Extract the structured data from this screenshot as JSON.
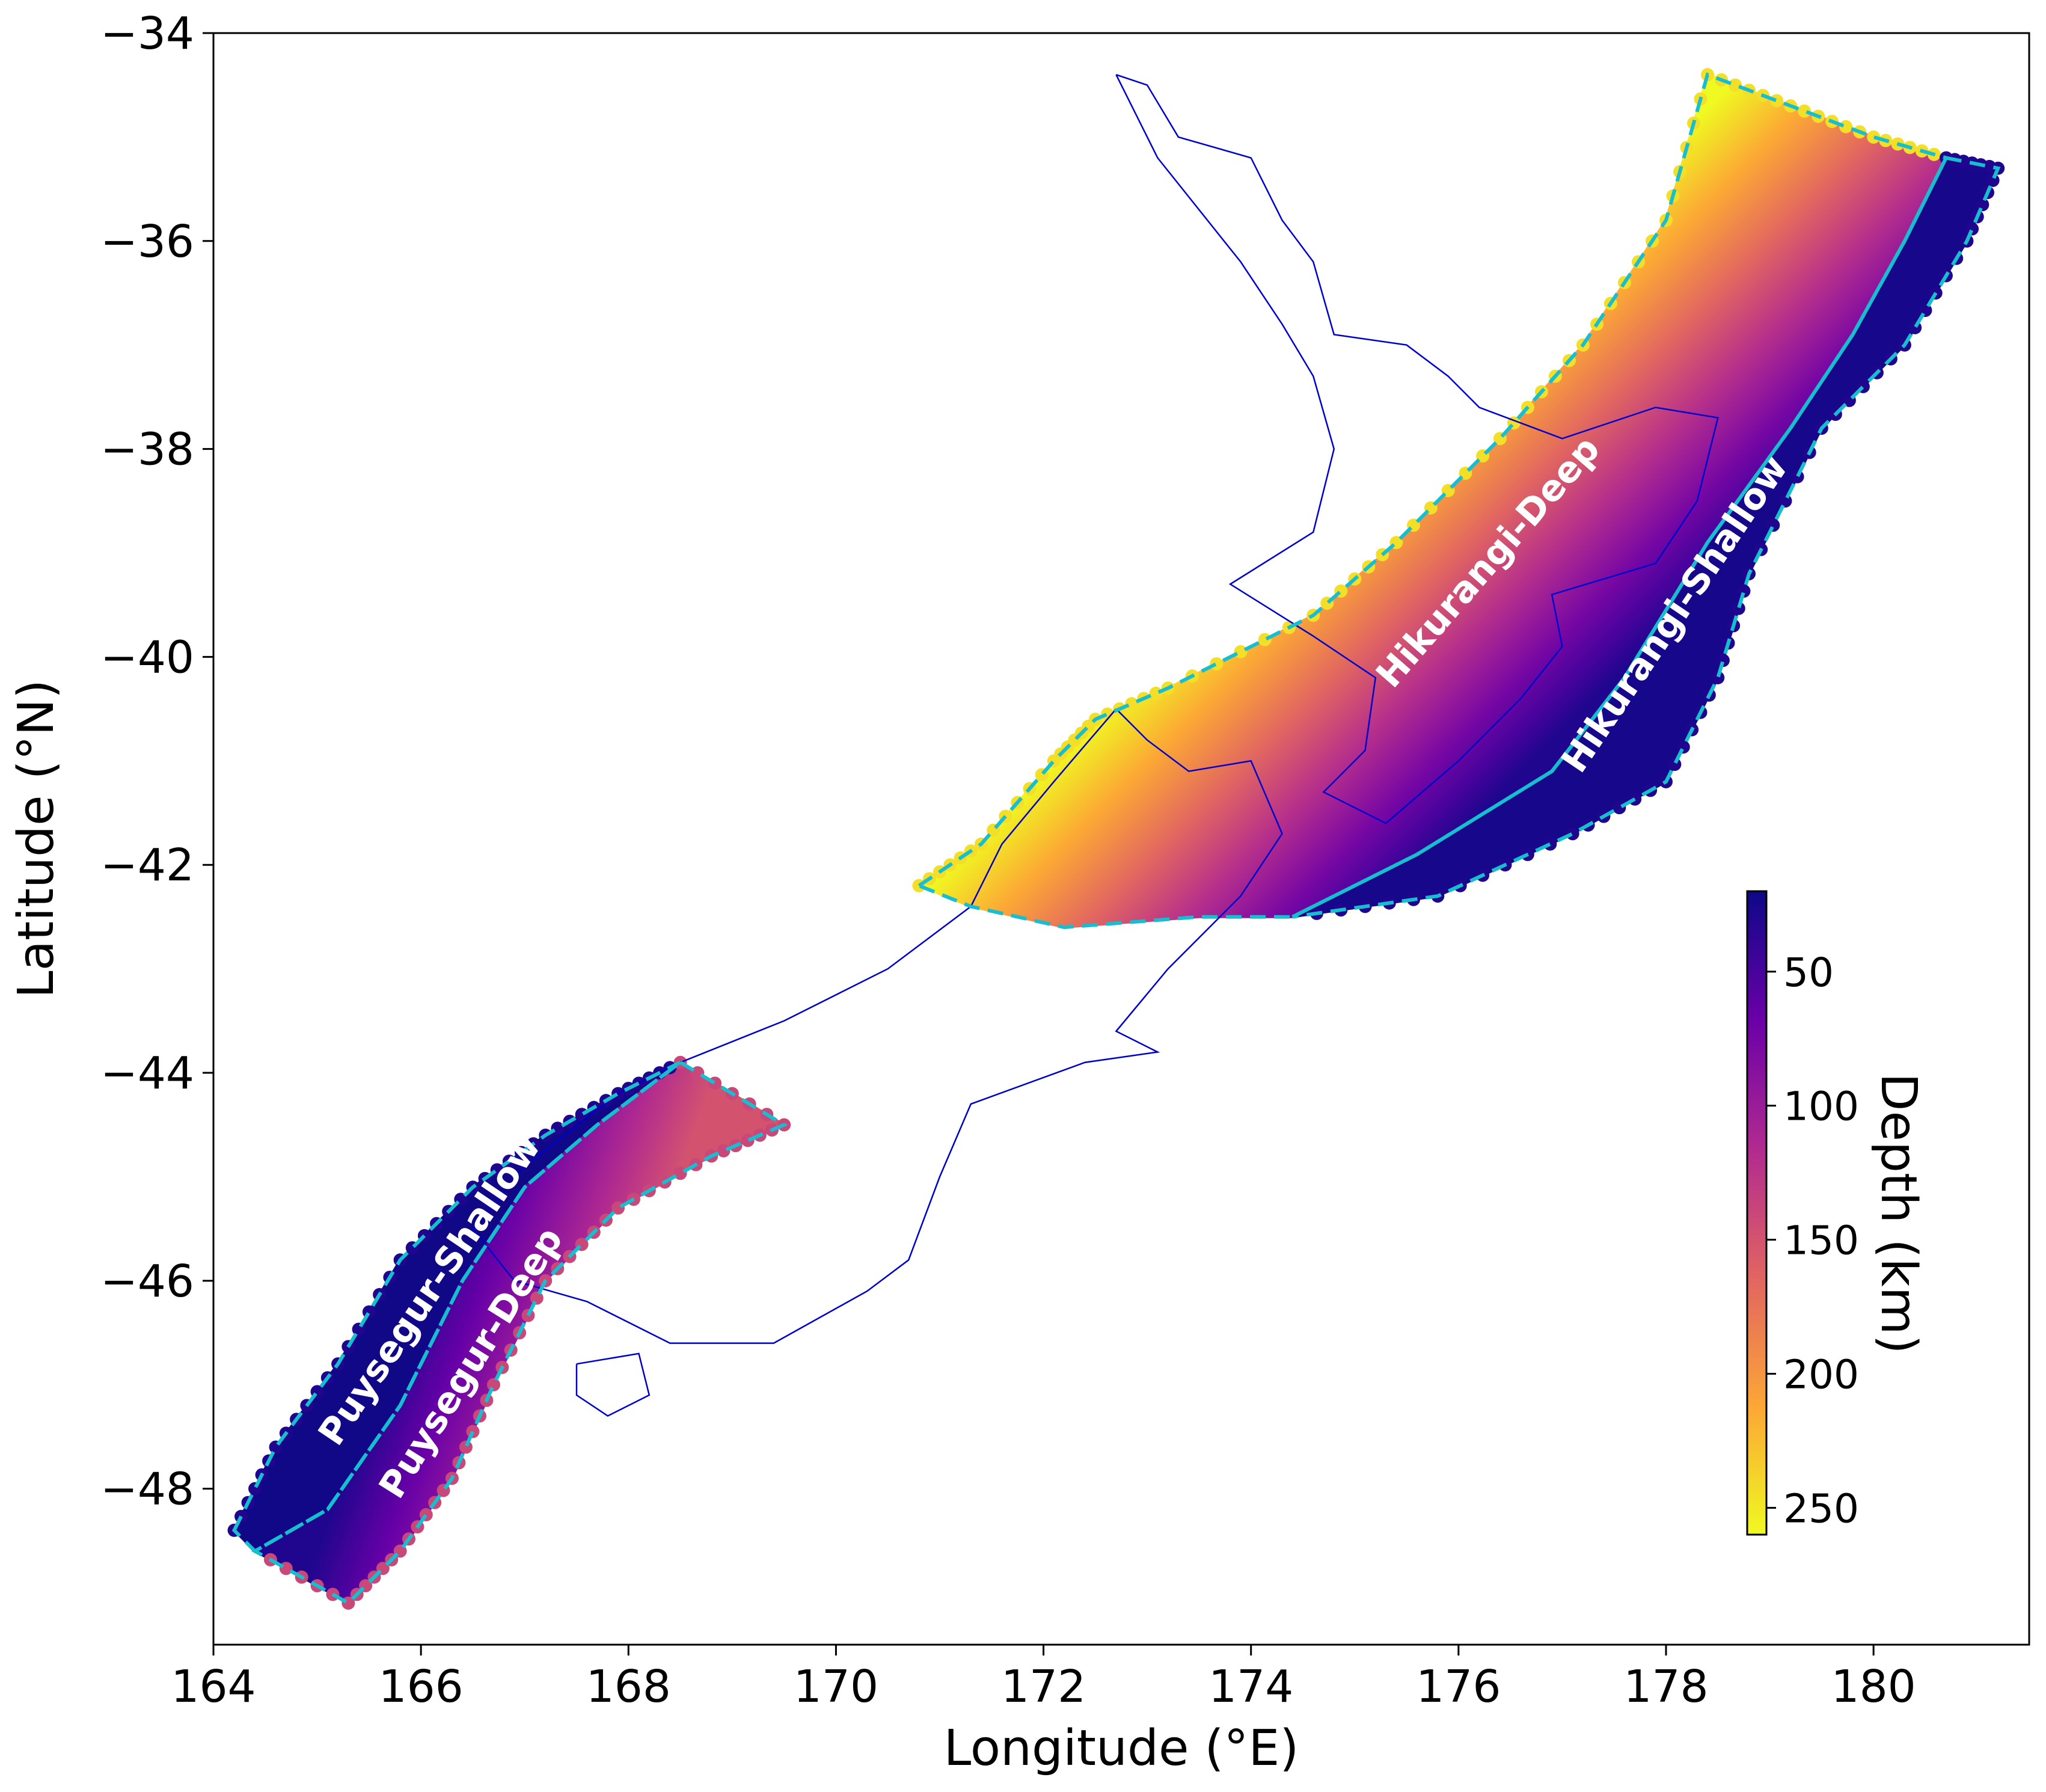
{
  "chart_data": {
    "type": "scatter",
    "title": "",
    "xlabel": "Longitude (°E)",
    "ylabel": "Latitude (°N)",
    "xlim": [
      164,
      181.5
    ],
    "ylim": [
      -49.5,
      -34
    ],
    "xticks": [
      164,
      166,
      168,
      170,
      172,
      174,
      176,
      178,
      180
    ],
    "yticks": [
      -34,
      -36,
      -38,
      -40,
      -42,
      -44,
      -46,
      -48
    ],
    "xtick_labels": [
      "164",
      "166",
      "168",
      "170",
      "172",
      "174",
      "176",
      "178",
      "180"
    ],
    "ytick_labels": [
      "−34",
      "−36",
      "−38",
      "−40",
      "−42",
      "−44",
      "−46",
      "−48"
    ],
    "grid": false,
    "colormap": "plasma_r",
    "colorbar": {
      "label": "Depth (km)",
      "range": [
        20,
        260
      ],
      "ticks": [
        50,
        100,
        150,
        200,
        250
      ],
      "tick_labels": [
        "50",
        "100",
        "150",
        "200",
        "250"
      ],
      "colors": [
        "#0d0887",
        "#6a00a8",
        "#b12a90",
        "#e16462",
        "#fca636",
        "#f0f921"
      ]
    },
    "coastline_color": "#0000cc",
    "boundary_color": "#17becf",
    "zones": [
      {
        "label": "Hikurangi-Deep",
        "label_pos": [
          176.3,
          -39.1
        ],
        "label_angle": 49,
        "outer": [
          [
            170.8,
            -42.2
          ],
          [
            171.4,
            -41.8
          ],
          [
            172.1,
            -41.0
          ],
          [
            172.5,
            -40.6
          ],
          [
            173.2,
            -40.3
          ],
          [
            174.6,
            -39.6
          ],
          [
            175.4,
            -38.9
          ],
          [
            176.4,
            -37.9
          ],
          [
            177.2,
            -37.0
          ],
          [
            178.0,
            -35.8
          ],
          [
            178.4,
            -34.4
          ],
          [
            179.2,
            -34.7
          ],
          [
            180.0,
            -35.0
          ],
          [
            180.7,
            -35.2
          ]
        ],
        "inner": [
          [
            180.7,
            -35.2
          ],
          [
            180.3,
            -36.0
          ],
          [
            179.8,
            -36.9
          ],
          [
            179.2,
            -37.8
          ],
          [
            178.4,
            -38.9
          ],
          [
            177.6,
            -40.2
          ],
          [
            176.9,
            -41.1
          ],
          [
            175.6,
            -41.9
          ],
          [
            174.4,
            -42.5
          ],
          [
            173.5,
            -42.5
          ],
          [
            172.2,
            -42.6
          ],
          [
            171.3,
            -42.4
          ],
          [
            170.8,
            -42.2
          ]
        ],
        "depth_range": [
          30,
          260
        ]
      },
      {
        "label": "Hikurangi-Shallow",
        "label_pos": [
          178.1,
          -39.6
        ],
        "label_angle": 56,
        "outer": [
          [
            180.7,
            -35.2
          ],
          [
            181.2,
            -35.3
          ],
          [
            180.9,
            -36.0
          ],
          [
            180.3,
            -37.0
          ],
          [
            179.5,
            -37.8
          ],
          [
            178.8,
            -39.2
          ],
          [
            178.5,
            -40.2
          ],
          [
            178.0,
            -41.2
          ],
          [
            177.1,
            -41.7
          ],
          [
            175.8,
            -42.3
          ],
          [
            174.4,
            -42.5
          ]
        ],
        "inner": [
          [
            174.4,
            -42.5
          ],
          [
            175.6,
            -41.9
          ],
          [
            176.9,
            -41.1
          ],
          [
            177.6,
            -40.2
          ],
          [
            178.4,
            -38.9
          ],
          [
            179.2,
            -37.8
          ],
          [
            179.8,
            -36.9
          ],
          [
            180.3,
            -36.0
          ],
          [
            180.7,
            -35.2
          ]
        ],
        "depth_range": [
          15,
          40
        ]
      },
      {
        "label": "Puysegur-Shallow",
        "label_pos": [
          166.1,
          -46.1
        ],
        "label_angle": -56,
        "outer": [
          [
            164.2,
            -48.4
          ],
          [
            164.6,
            -47.6
          ],
          [
            165.2,
            -46.8
          ],
          [
            165.8,
            -45.8
          ],
          [
            166.5,
            -45.1
          ],
          [
            167.2,
            -44.6
          ],
          [
            167.9,
            -44.2
          ],
          [
            168.5,
            -43.9
          ]
        ],
        "inner": [
          [
            168.5,
            -43.9
          ],
          [
            167.7,
            -44.5
          ],
          [
            167.0,
            -45.1
          ],
          [
            166.4,
            -46.0
          ],
          [
            165.8,
            -47.2
          ],
          [
            165.1,
            -48.2
          ],
          [
            164.4,
            -48.6
          ]
        ],
        "depth_range": [
          15,
          40
        ]
      },
      {
        "label": "Puysegur-Deep",
        "label_pos": [
          166.5,
          -46.8
        ],
        "label_angle": -58,
        "outer": [
          [
            168.5,
            -43.9
          ],
          [
            169.5,
            -44.5
          ],
          [
            168.8,
            -44.8
          ],
          [
            167.9,
            -45.3
          ],
          [
            167.2,
            -46.0
          ],
          [
            166.7,
            -47.0
          ],
          [
            166.3,
            -47.9
          ],
          [
            165.8,
            -48.6
          ],
          [
            165.3,
            -49.1
          ],
          [
            164.4,
            -48.6
          ]
        ],
        "inner": [
          [
            164.4,
            -48.6
          ],
          [
            165.1,
            -48.2
          ],
          [
            165.8,
            -47.2
          ],
          [
            166.4,
            -46.0
          ],
          [
            167.0,
            -45.1
          ],
          [
            167.7,
            -44.5
          ],
          [
            168.5,
            -43.9
          ]
        ],
        "depth_range": [
          30,
          150
        ]
      }
    ]
  }
}
